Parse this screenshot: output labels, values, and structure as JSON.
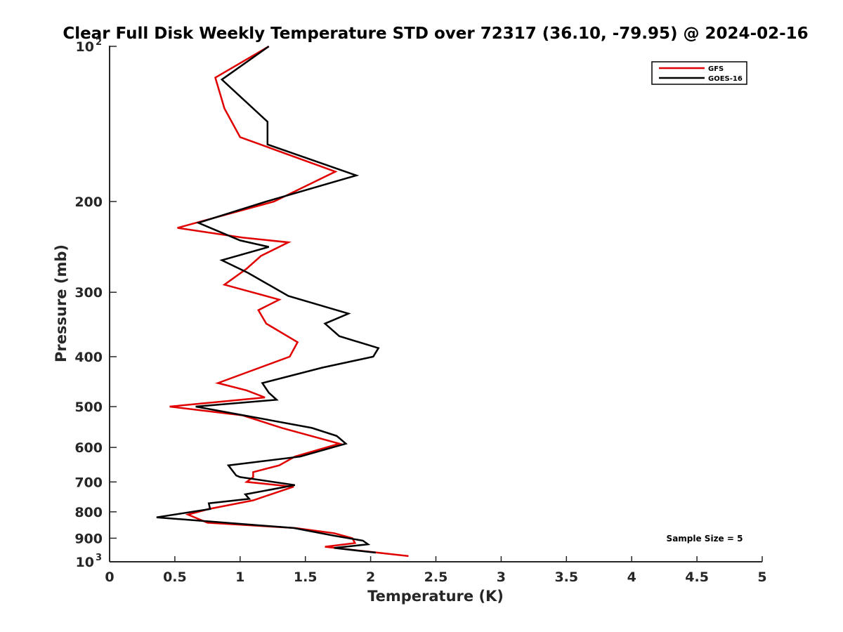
{
  "chart_data": {
    "type": "line",
    "title": "Clear Full Disk Weekly Temperature STD over 72317 (36.10, -79.95) @ 2024-02-16",
    "xlabel": "Temperature (K)",
    "ylabel": "Pressure (mb)",
    "xlim": [
      0,
      5
    ],
    "ylim": [
      100,
      1000
    ],
    "y_scale": "log",
    "y_reversed": true,
    "grid": false,
    "legend_position": "top-right",
    "x_ticks": [
      "0",
      "0.5",
      "1",
      "1.5",
      "2",
      "2.5",
      "3",
      "3.5",
      "4",
      "4.5",
      "5"
    ],
    "y_tick_values": [
      200,
      300,
      400,
      500,
      600,
      700,
      800,
      900
    ],
    "y_ticks": [
      "200",
      "300",
      "400",
      "500",
      "600",
      "700",
      "800",
      "900"
    ],
    "y_tick_power_labels": [
      {
        "value": 100,
        "base": "10",
        "exp": "2"
      },
      {
        "value": 1000,
        "base": "10",
        "exp": "3"
      }
    ],
    "annotation": "Sample Size = 5",
    "series": [
      {
        "name": "GFS",
        "color": "#e00000",
        "points": [
          [
            1.22,
            100
          ],
          [
            0.81,
            115
          ],
          [
            0.88,
            132
          ],
          [
            1.0,
            150
          ],
          [
            1.73,
            175
          ],
          [
            1.26,
            200
          ],
          [
            0.52,
            225
          ],
          [
            1.02,
            235
          ],
          [
            1.37,
            240
          ],
          [
            1.16,
            255
          ],
          [
            1.05,
            270
          ],
          [
            0.88,
            290
          ],
          [
            1.3,
            310
          ],
          [
            1.14,
            325
          ],
          [
            1.2,
            345
          ],
          [
            1.44,
            375
          ],
          [
            1.38,
            400
          ],
          [
            0.83,
            450
          ],
          [
            1.05,
            465
          ],
          [
            1.19,
            480
          ],
          [
            0.46,
            500
          ],
          [
            1.02,
            520
          ],
          [
            1.32,
            550
          ],
          [
            1.76,
            590
          ],
          [
            1.42,
            625
          ],
          [
            1.3,
            650
          ],
          [
            1.1,
            670
          ],
          [
            1.1,
            685
          ],
          [
            1.05,
            700
          ],
          [
            1.41,
            715
          ],
          [
            1.1,
            760
          ],
          [
            0.76,
            790
          ],
          [
            0.6,
            810
          ],
          [
            0.75,
            840
          ],
          [
            1.42,
            860
          ],
          [
            1.72,
            880
          ],
          [
            1.86,
            900
          ],
          [
            1.88,
            920
          ],
          [
            1.65,
            935
          ],
          [
            1.97,
            955
          ],
          [
            2.29,
            975
          ]
        ]
      },
      {
        "name": "GOES-16",
        "color": "#000000",
        "points": [
          [
            1.22,
            100
          ],
          [
            0.86,
            116
          ],
          [
            1.21,
            140
          ],
          [
            1.21,
            155
          ],
          [
            1.89,
            178
          ],
          [
            1.2,
            200
          ],
          [
            0.68,
            220
          ],
          [
            1.0,
            238
          ],
          [
            1.22,
            245
          ],
          [
            0.86,
            260
          ],
          [
            1.06,
            275
          ],
          [
            1.37,
            305
          ],
          [
            1.83,
            330
          ],
          [
            1.65,
            345
          ],
          [
            1.76,
            365
          ],
          [
            2.06,
            385
          ],
          [
            2.02,
            400
          ],
          [
            1.63,
            420
          ],
          [
            1.17,
            450
          ],
          [
            1.22,
            470
          ],
          [
            1.28,
            485
          ],
          [
            0.66,
            500
          ],
          [
            1.12,
            525
          ],
          [
            1.55,
            550
          ],
          [
            1.74,
            570
          ],
          [
            1.81,
            590
          ],
          [
            1.46,
            625
          ],
          [
            0.91,
            650
          ],
          [
            0.97,
            680
          ],
          [
            1.0,
            685
          ],
          [
            1.42,
            710
          ],
          [
            1.04,
            740
          ],
          [
            1.07,
            755
          ],
          [
            0.76,
            770
          ],
          [
            0.77,
            790
          ],
          [
            0.36,
            820
          ],
          [
            1.41,
            860
          ],
          [
            1.72,
            890
          ],
          [
            1.94,
            910
          ],
          [
            1.98,
            925
          ],
          [
            1.72,
            940
          ],
          [
            2.04,
            960
          ]
        ]
      }
    ]
  }
}
